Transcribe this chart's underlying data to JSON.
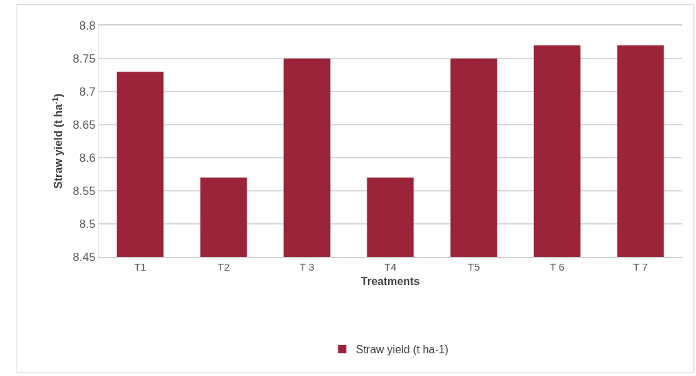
{
  "chart_data": {
    "type": "bar",
    "xlabel": "Treatments",
    "ylabel": "Straw yield (t ha$^{-1}$)",
    "categories": [
      "T1",
      "T2",
      "T 3",
      "T4",
      "T5",
      "T 6",
      "T 7"
    ],
    "series": [
      {
        "name": "Straw yield (t ha-1)",
        "color": "#9b2438",
        "values": [
          8.73,
          8.57,
          8.75,
          8.57,
          8.75,
          8.77,
          8.77
        ]
      }
    ],
    "ylim": [
      8.45,
      8.8
    ],
    "yticks": [
      8.45,
      8.5,
      8.55,
      8.6,
      8.65,
      8.7,
      8.75,
      8.8
    ],
    "grid": "y",
    "legend": "bottom"
  }
}
